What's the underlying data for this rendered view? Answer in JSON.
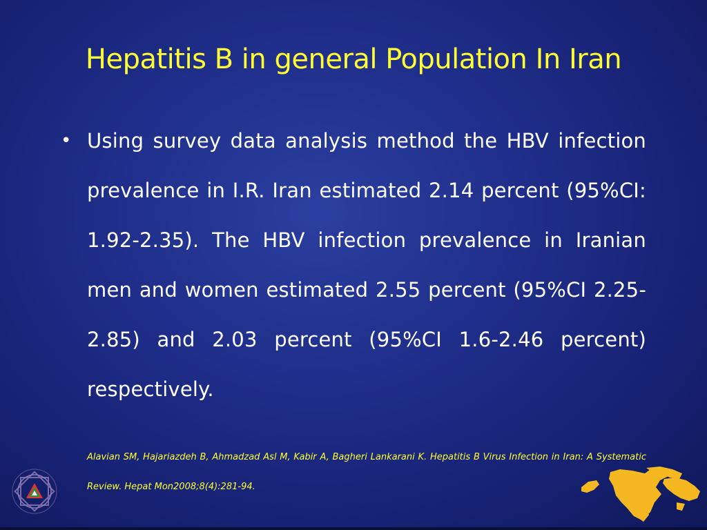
{
  "slide": {
    "title": "Hepatitis B in general Population In Iran",
    "bullet_marker": "•",
    "bullet_text": "Using survey data analysis method the HBV infection prevalence in I.R. Iran estimated 2.14 percent (95%CI: 1.92-2.35). The HBV infection prevalence in Iranian men and women estimated 2.55 percent (95%CI 2.25-2.85) and 2.03 percent (95%CI 1.6-2.46 percent) respectively.",
    "citation": "Alavian SM, Hajariazdeh B, Ahmadzad Asl M, Kabir A, Bagheri Lankarani K. Hepatitis B Virus Infection in Iran: A Systematic Review. Hepat Mon2008;8(4):281-94."
  },
  "colors": {
    "title": "#ffff33",
    "body_text": "#ffffff",
    "citation": "#ffff33",
    "map_fill": "#f5b820",
    "background": "#1e2d88"
  },
  "icons": {
    "logo": "organization-emblem-icon",
    "map": "middle-east-map-icon"
  }
}
